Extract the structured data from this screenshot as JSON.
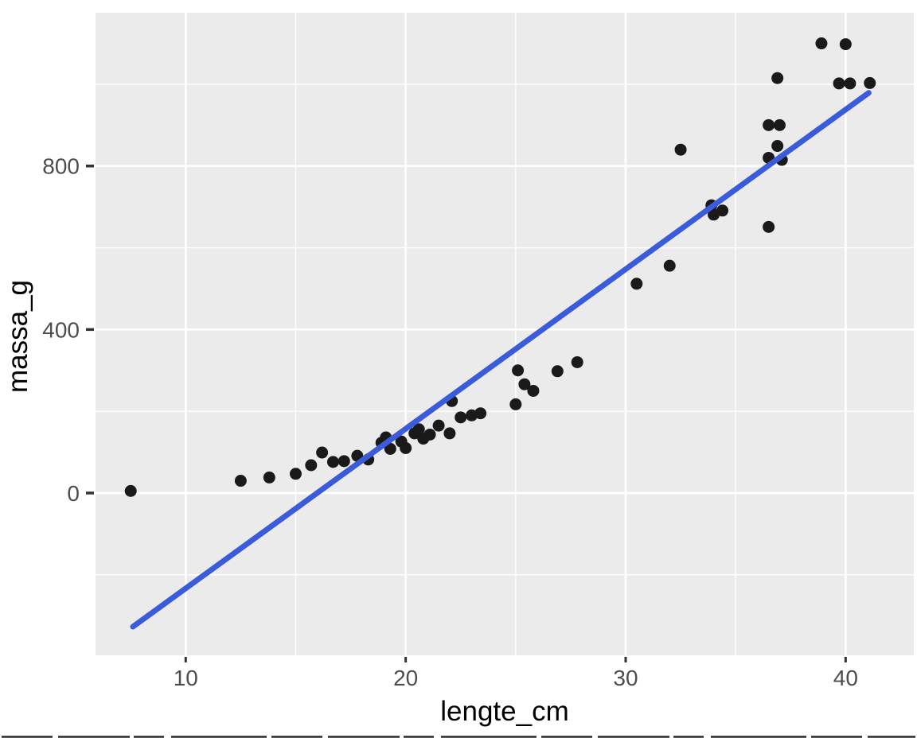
{
  "figure": {
    "description": "ggplot2 scatter plot with linear trend line"
  },
  "chart_data": {
    "type": "scatter",
    "title": "",
    "xlabel": "lengte_cm",
    "ylabel": "massa_g",
    "legend": "none",
    "grid": true,
    "x_range": [
      5.9,
      43.1
    ],
    "y_range": [
      -397,
      1175
    ],
    "x_ticks": [
      10,
      20,
      30,
      40
    ],
    "x_minor_gridlines": [
      15,
      25,
      35
    ],
    "y_ticks": [
      0,
      400,
      800
    ],
    "y_minor_gridlines": [
      -200,
      200,
      600,
      1000
    ],
    "points": [
      [
        7.5,
        5
      ],
      [
        12.5,
        30
      ],
      [
        13.8,
        38
      ],
      [
        15.0,
        47
      ],
      [
        15.7,
        68
      ],
      [
        16.2,
        99
      ],
      [
        16.7,
        76
      ],
      [
        17.2,
        78
      ],
      [
        17.8,
        91
      ],
      [
        18.3,
        82
      ],
      [
        18.9,
        123
      ],
      [
        19.1,
        136
      ],
      [
        19.3,
        108
      ],
      [
        19.8,
        126
      ],
      [
        20.0,
        110
      ],
      [
        20.4,
        146
      ],
      [
        20.6,
        156
      ],
      [
        20.8,
        133
      ],
      [
        21.1,
        143
      ],
      [
        21.5,
        165
      ],
      [
        22.0,
        146
      ],
      [
        22.1,
        225
      ],
      [
        22.5,
        185
      ],
      [
        23.0,
        190
      ],
      [
        23.4,
        195
      ],
      [
        25.0,
        217
      ],
      [
        25.1,
        300
      ],
      [
        25.4,
        266
      ],
      [
        25.8,
        250
      ],
      [
        26.9,
        298
      ],
      [
        27.8,
        320
      ],
      [
        30.5,
        512
      ],
      [
        32.0,
        556
      ],
      [
        32.5,
        840
      ],
      [
        33.9,
        704
      ],
      [
        34.0,
        681
      ],
      [
        34.4,
        691
      ],
      [
        36.5,
        651
      ],
      [
        36.5,
        820
      ],
      [
        36.9,
        849
      ],
      [
        37.1,
        815
      ],
      [
        36.5,
        900
      ],
      [
        37.0,
        900
      ],
      [
        36.9,
        1015
      ],
      [
        38.9,
        1100
      ],
      [
        40.0,
        1098
      ],
      [
        39.7,
        1002
      ],
      [
        40.2,
        1002
      ],
      [
        41.1,
        1003
      ]
    ],
    "trend_line": {
      "type": "linear_fit",
      "x1": 7.6,
      "y1": -327,
      "x2": 41.05,
      "y2": 979
    },
    "style": {
      "panel_bg": "#EBEBEB",
      "grid_color": "#FFFFFF",
      "point_color": "#1A1A1A",
      "trend_color": "#3A5CDB",
      "tick_color": "#333333",
      "tick_label_color": "#4D4D4D",
      "axis_title_color": "#000000",
      "point_radius": 7.5,
      "trend_width": 7
    }
  }
}
